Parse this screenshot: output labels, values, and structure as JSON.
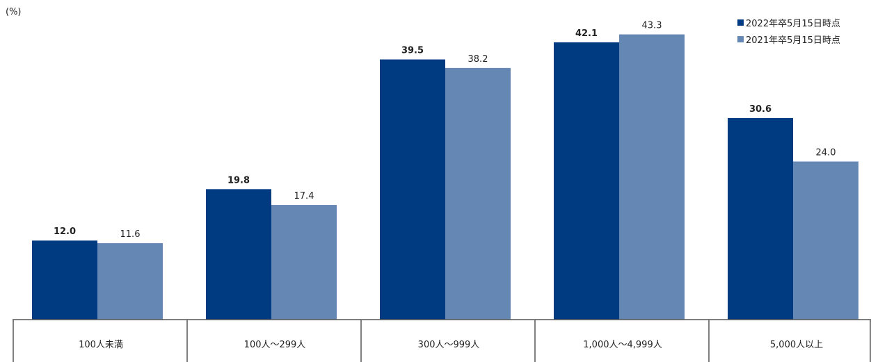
{
  "unit_label": "(%)",
  "colors": {
    "series1": "#003a80",
    "series2": "#6587b4"
  },
  "chart_data": {
    "type": "bar",
    "categories": [
      "100人未満",
      "100人〜299人",
      "300人〜999人",
      "1,000人〜4,999人",
      "5,000人以上"
    ],
    "series": [
      {
        "name": "2022年卒5月15日時点",
        "values": [
          12.0,
          19.8,
          39.5,
          42.1,
          30.6
        ]
      },
      {
        "name": "2021年卒5月15日時点",
        "values": [
          11.6,
          17.4,
          38.2,
          43.3,
          24.0
        ]
      }
    ],
    "ylim": [
      0,
      45
    ],
    "grid": false,
    "legend": "top-right",
    "data_labels": true
  }
}
